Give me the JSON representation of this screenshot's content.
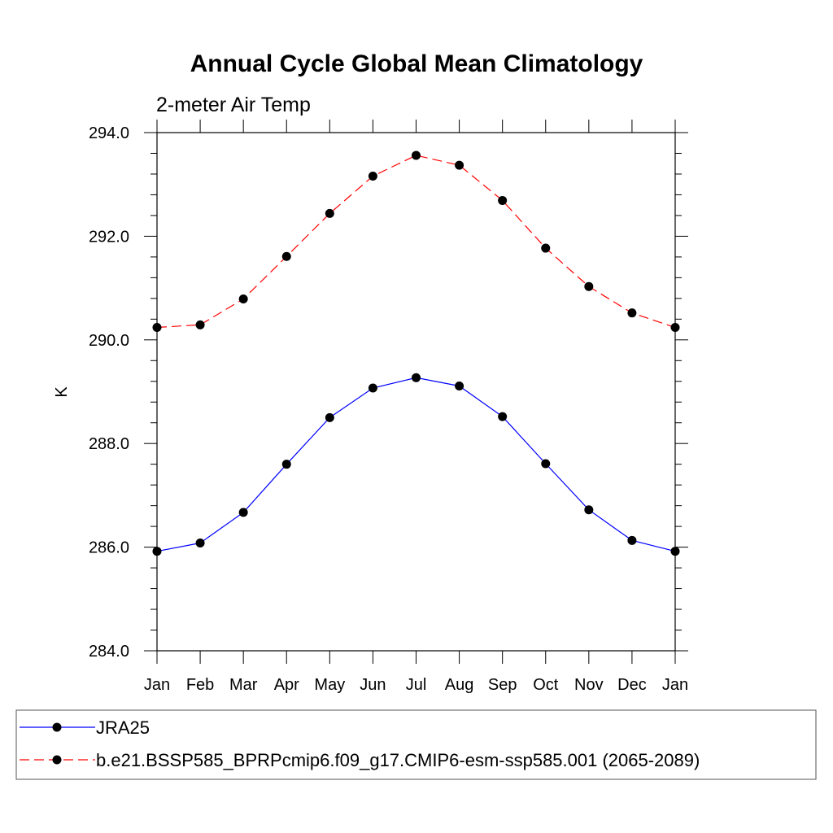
{
  "chart_data": {
    "type": "line",
    "title": "Annual Cycle Global Mean Climatology",
    "subtitle": "2-meter Air Temp",
    "xlabel": "",
    "ylabel": "K",
    "ylim": [
      284.0,
      294.0
    ],
    "y_ticks": [
      "284.0",
      "286.0",
      "288.0",
      "290.0",
      "292.0",
      "294.0"
    ],
    "y_tick_values": [
      284,
      286,
      288,
      290,
      292,
      294
    ],
    "categories": [
      "Jan",
      "Feb",
      "Mar",
      "Apr",
      "May",
      "Jun",
      "Jul",
      "Aug",
      "Sep",
      "Oct",
      "Nov",
      "Dec",
      "Jan"
    ],
    "series": [
      {
        "name": "JRA25",
        "color": "#0000ff",
        "dash": "solid",
        "values": [
          285.92,
          286.08,
          286.67,
          287.6,
          288.5,
          289.07,
          289.27,
          289.11,
          288.52,
          287.61,
          286.72,
          286.13,
          285.92
        ]
      },
      {
        "name": "b.e21.BSSP585_BPRPcmip6.f09_g17.CMIP6-esm-ssp585.001 (2065-2089)",
        "color": "#ff0000",
        "dash": "dashed",
        "values": [
          290.24,
          290.29,
          290.79,
          291.61,
          292.44,
          293.16,
          293.56,
          293.37,
          292.69,
          291.77,
          291.03,
          290.52,
          290.24
        ]
      }
    ],
    "marker": "filled-circle",
    "marker_color": "#000000",
    "legend_position": "bottom"
  }
}
